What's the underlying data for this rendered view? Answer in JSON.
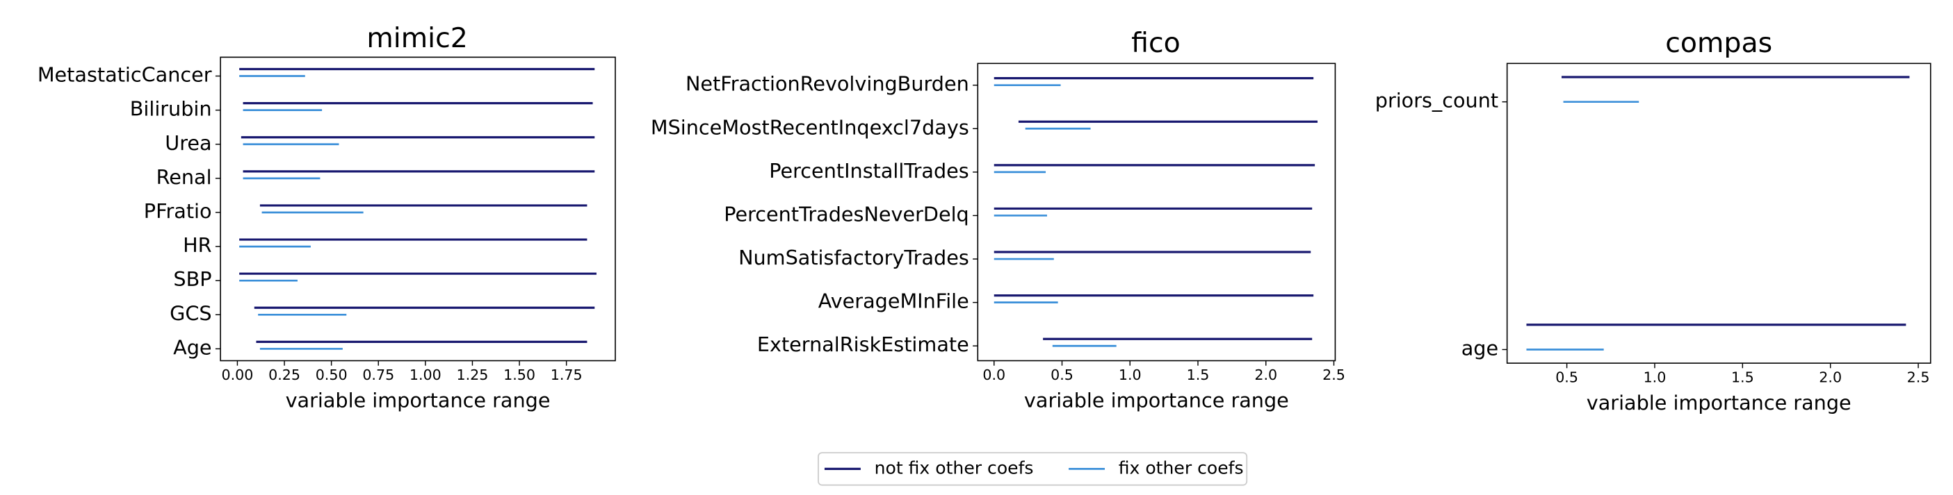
{
  "chart_data": [
    {
      "type": "range",
      "title": "mimic2",
      "xlabel": "variable importance range",
      "legend": "lower center",
      "categories": [
        "MetastaticCancer",
        "Bilirubin",
        "Urea",
        "Renal",
        "PFratio",
        "HR",
        "SBP",
        "GCS",
        "Age"
      ],
      "series": [
        {
          "name": "not fix other coefs",
          "color": "#191970",
          "values": [
            [
              0.01,
              1.9
            ],
            [
              0.03,
              1.89
            ],
            [
              0.02,
              1.9
            ],
            [
              0.03,
              1.9
            ],
            [
              0.12,
              1.86
            ],
            [
              0.01,
              1.86
            ],
            [
              0.01,
              1.91
            ],
            [
              0.09,
              1.9
            ],
            [
              0.1,
              1.86
            ]
          ]
        },
        {
          "name": "fix other coefs",
          "color": "#3a8fd9",
          "values": [
            [
              0.01,
              0.36
            ],
            [
              0.03,
              0.45
            ],
            [
              0.03,
              0.54
            ],
            [
              0.03,
              0.44
            ],
            [
              0.13,
              0.67
            ],
            [
              0.01,
              0.39
            ],
            [
              0.01,
              0.32
            ],
            [
              0.11,
              0.58
            ],
            [
              0.12,
              0.56
            ]
          ]
        }
      ],
      "xlim": [
        -0.09,
        2.01
      ],
      "xticks": [
        {
          "value": 0,
          "label": "0.00"
        },
        0.25,
        {
          "value": 0.5,
          "label": "0.50"
        },
        0.75,
        {
          "value": 1,
          "label": "1.00"
        },
        1.25,
        {
          "value": 1.5,
          "label": "1.50"
        },
        1.75
      ]
    },
    {
      "type": "range",
      "title": "fico",
      "xlabel": "variable importance range",
      "categories": [
        "NetFractionRevolvingBurden",
        "MSinceMostRecentInqexcl7days",
        "PercentInstallTrades",
        "PercentTradesNeverDelq",
        "NumSatisfactoryTrades",
        "AverageMInFile",
        "ExternalRiskEstimate"
      ],
      "series": [
        {
          "color": "#191970",
          "values": [
            [
              0.0,
              2.35
            ],
            [
              0.18,
              2.38
            ],
            [
              0.0,
              2.36
            ],
            [
              0.0,
              2.34
            ],
            [
              0.0,
              2.33
            ],
            [
              0.0,
              2.35
            ],
            [
              0.36,
              2.34
            ]
          ]
        },
        {
          "color": "#3a8fd9",
          "values": [
            [
              0.0,
              0.49
            ],
            [
              0.23,
              0.71
            ],
            [
              0.0,
              0.38
            ],
            [
              0.0,
              0.39
            ],
            [
              0.0,
              0.44
            ],
            [
              0.0,
              0.47
            ],
            [
              0.43,
              0.9
            ]
          ]
        }
      ],
      "xlim": [
        -0.12,
        2.51
      ],
      "xticks": [
        {
          "value": 0,
          "label": "0.0"
        },
        0.5,
        {
          "value": 1,
          "label": "1.0"
        },
        1.5,
        {
          "value": 2,
          "label": "2.0"
        },
        2.5
      ]
    },
    {
      "type": "range",
      "title": "compas",
      "xlabel": "variable importance range",
      "categories": [
        "priors_count",
        "age"
      ],
      "series": [
        {
          "color": "#191970",
          "values": [
            [
              0.47,
              2.45
            ],
            [
              0.27,
              2.43
            ]
          ]
        },
        {
          "color": "#3a8fd9",
          "values": [
            [
              0.48,
              0.91
            ],
            [
              0.27,
              0.71
            ]
          ]
        }
      ],
      "xlim": [
        0.16,
        2.57
      ],
      "xticks": [
        0.5,
        {
          "value": 1,
          "label": "1.0"
        },
        1.5,
        {
          "value": 2,
          "label": "2.0"
        },
        2.5
      ]
    }
  ]
}
